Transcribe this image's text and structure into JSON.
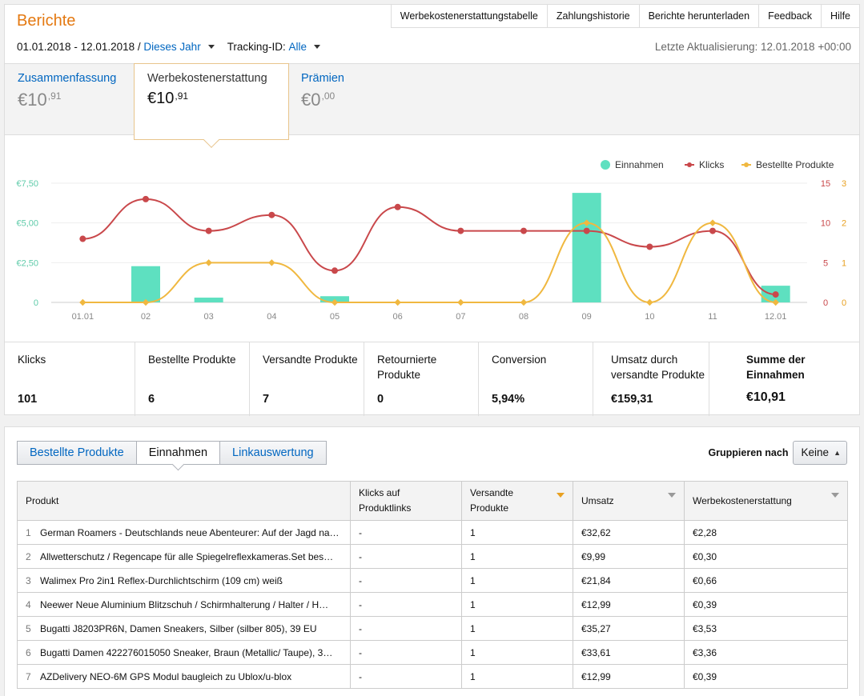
{
  "header": {
    "title": "Berichte",
    "nav": [
      "Werbekostenerstattungstabelle",
      "Zahlungshistorie",
      "Berichte herunterladen",
      "Feedback",
      "Hilfe"
    ],
    "date_range": "01.01.2018 - 12.01.2018 /",
    "period": "Dieses Jahr",
    "tracking_label": "Tracking-ID:",
    "tracking_value": "Alle",
    "last_update": "Letzte Aktualisierung: 12.01.2018 +00:00"
  },
  "summary_tabs": [
    {
      "label": "Zusammenfassung",
      "currency": "€",
      "int": "10",
      "dec": ",91"
    },
    {
      "label": "Werbekostenerstattung",
      "currency": "€",
      "int": "10",
      "dec": ",91"
    },
    {
      "label": "Prämien",
      "currency": "€",
      "int": "0",
      "dec": ",00"
    }
  ],
  "chart_data": {
    "type": "bar+line",
    "x": [
      "01.01",
      "02",
      "03",
      "04",
      "05",
      "06",
      "07",
      "08",
      "09",
      "10",
      "11",
      "12.01"
    ],
    "legend": [
      "Einnahmen",
      "Klicks",
      "Bestellte Produkte"
    ],
    "series": [
      {
        "name": "Einnahmen",
        "type": "bar",
        "axis": "left",
        "color": "#5ee0c0",
        "values": [
          0,
          2.28,
          0.3,
          0,
          0.39,
          0,
          0,
          0,
          6.89,
          0,
          0,
          1.05
        ]
      },
      {
        "name": "Klicks",
        "type": "line",
        "axis": "right1",
        "color": "#c9484b",
        "values": [
          8,
          13,
          9,
          11,
          4,
          12,
          9,
          9,
          9,
          7,
          9,
          1
        ]
      },
      {
        "name": "Bestellte Produkte",
        "type": "line",
        "axis": "right2",
        "color": "#f0b840",
        "values": [
          0,
          0,
          1,
          1,
          0,
          0,
          0,
          0,
          2,
          0,
          2,
          0
        ]
      }
    ],
    "left_axis": {
      "ticks": [
        "0",
        "€2,50",
        "€5,00",
        "€7,50"
      ],
      "ylim": [
        0,
        7.5
      ],
      "color": "#5ecba9"
    },
    "right_axis_1": {
      "ticks": [
        "0",
        "5",
        "10",
        "15"
      ],
      "ylim": [
        0,
        15
      ],
      "color": "#c9484b"
    },
    "right_axis_2": {
      "ticks": [
        "0",
        "1",
        "2",
        "3"
      ],
      "ylim": [
        0,
        3
      ],
      "color": "#e8a020"
    },
    "legend_position": "top-right"
  },
  "stats": [
    {
      "label": "Klicks",
      "value": "101"
    },
    {
      "label": "Bestellte Produkte",
      "value": "6"
    },
    {
      "label": "Versandte Produkte",
      "value": "7"
    },
    {
      "label": "Retournierte Produkte",
      "value": "0"
    },
    {
      "label": "Conversion",
      "value": "5,94%"
    },
    {
      "label": "Umsatz durch versandte Produkte",
      "value": "€159,31"
    },
    {
      "label": "Summe der Einnahmen",
      "value": "€10,91"
    }
  ],
  "report_tabs": [
    "Bestellte Produkte",
    "Einnahmen",
    "Linkauswertung"
  ],
  "group_by": {
    "label": "Gruppieren nach",
    "value": "Keine"
  },
  "table": {
    "columns": [
      "Produkt",
      "Klicks auf Produktlinks",
      "Versandte Produkte",
      "Umsatz",
      "Werbekostenerstattung"
    ],
    "rows": [
      {
        "n": "1",
        "product": "German Roamers - Deutschlands neue Abenteurer: Auf der Jagd na…",
        "clicks": "-",
        "shipped": "1",
        "revenue": "€32,62",
        "fee": "€2,28"
      },
      {
        "n": "2",
        "product": "Allwetterschutz / Regencape für alle Spiegelreflexkameras.Set bes…",
        "clicks": "-",
        "shipped": "1",
        "revenue": "€9,99",
        "fee": "€0,30"
      },
      {
        "n": "3",
        "product": "Walimex Pro 2in1 Reflex-Durchlichtschirm (109 cm) weiß",
        "clicks": "-",
        "shipped": "1",
        "revenue": "€21,84",
        "fee": "€0,66"
      },
      {
        "n": "4",
        "product": "Neewer Neue Aluminium Blitzschuh / Schirmhalterung / Halter / H…",
        "clicks": "-",
        "shipped": "1",
        "revenue": "€12,99",
        "fee": "€0,39"
      },
      {
        "n": "5",
        "product": "Bugatti J8203PR6N, Damen Sneakers, Silber (silber 805), 39 EU",
        "clicks": "-",
        "shipped": "1",
        "revenue": "€35,27",
        "fee": "€3,53"
      },
      {
        "n": "6",
        "product": "Bugatti Damen 422276015050 Sneaker, Braun (Metallic/ Taupe), 3…",
        "clicks": "-",
        "shipped": "1",
        "revenue": "€33,61",
        "fee": "€3,36"
      },
      {
        "n": "7",
        "product": "AZDelivery NEO-6M GPS Modul baugleich zu Ublox/u-blox",
        "clicks": "-",
        "shipped": "1",
        "revenue": "€12,99",
        "fee": "€0,39"
      }
    ]
  }
}
